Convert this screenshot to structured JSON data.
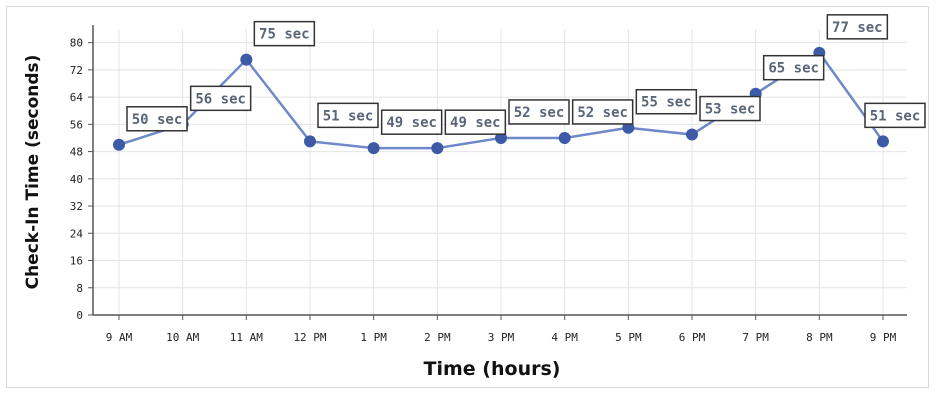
{
  "chart_data": {
    "type": "line",
    "title": "",
    "xlabel": "Time (hours)",
    "ylabel": "Check-In Time (seconds)",
    "categories": [
      "9 AM",
      "10 AM",
      "11 AM",
      "12 PM",
      "1 PM",
      "2 PM",
      "3 PM",
      "4 PM",
      "5 PM",
      "6 PM",
      "7 PM",
      "8 PM",
      "9 PM"
    ],
    "values": [
      50,
      56,
      75,
      51,
      49,
      49,
      52,
      52,
      55,
      53,
      65,
      77,
      51
    ],
    "data_labels": [
      "50 sec",
      "56 sec",
      "75 sec",
      "51 sec",
      "49 sec",
      "49 sec",
      "52 sec",
      "52 sec",
      "55 sec",
      "53 sec",
      "65 sec",
      "77 sec",
      "51 sec"
    ],
    "yticks": [
      "0",
      "8",
      "16",
      "24",
      "32",
      "40",
      "48",
      "56",
      "64",
      "72",
      "80"
    ],
    "ylim": [
      0,
      84
    ],
    "grid": true,
    "colors": {
      "line": "#6e88c8",
      "marker": "#3c5aa6",
      "grid": "#e4e4e4"
    }
  }
}
